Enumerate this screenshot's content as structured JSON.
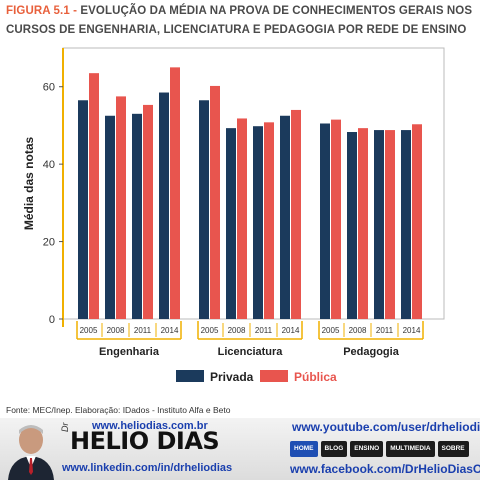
{
  "figure": {
    "label": "FIGURA 5.1 - ",
    "title": "EVOLUÇÃO DA MÉDIA NA PROVA DE CONHECIMENTOS GERAIS NOS CURSOS DE ENGENHARIA, LICENCIATURA E PEDAGOGIA POR REDE DE ENSINO",
    "source": "Fonte: MEC/Inep. Elaboração: IDados - Instituto Alfa e Beto"
  },
  "chart_data": {
    "type": "bar",
    "title": "EVOLUÇÃO DA MÉDIA NA PROVA DE CONHECIMENTOS GERAIS NOS CURSOS DE ENGENHARIA, LICENCIATURA E PEDAGOGIA POR REDE DE ENSINO",
    "ylabel": "Média das notas",
    "xlabel": "",
    "ylim": [
      0,
      70
    ],
    "yticks": [
      0,
      20,
      40,
      60
    ],
    "grid": false,
    "legend_position": "bottom",
    "groups": [
      {
        "name": "Engenharia",
        "years": [
          "2005",
          "2008",
          "2011",
          "2014"
        ]
      },
      {
        "name": "Licenciatura",
        "years": [
          "2005",
          "2008",
          "2011",
          "2014"
        ]
      },
      {
        "name": "Pedagogia",
        "years": [
          "2005",
          "2008",
          "2011",
          "2014"
        ]
      }
    ],
    "series": [
      {
        "name": "Privada",
        "color": "#1b3a5c",
        "values": [
          [
            56.5,
            52.5,
            53.0,
            58.5
          ],
          [
            56.5,
            49.3,
            49.8,
            52.5
          ],
          [
            50.5,
            48.3,
            48.8,
            48.8
          ]
        ]
      },
      {
        "name": "Pública",
        "color": "#e8554e",
        "values": [
          [
            63.5,
            57.5,
            55.3,
            65.0
          ],
          [
            60.2,
            51.8,
            50.8,
            54.0
          ],
          [
            51.5,
            49.3,
            48.8,
            50.3
          ]
        ]
      }
    ],
    "axis_color": "#f0b000"
  },
  "banner": {
    "prefix": "Dr",
    "brand": "HELIO DIAS",
    "site": "www.heliodias.com.br",
    "linkedin": "www.linkedin.com/in/drheliodias",
    "youtube": "www.youtube.com/user/drheliodias",
    "facebook": "www.facebook.com/DrHelioDiasOficial",
    "nav": [
      "HOME",
      "BLOG",
      "ENSINO",
      "MULTIMEDIA",
      "SOBRE"
    ]
  }
}
